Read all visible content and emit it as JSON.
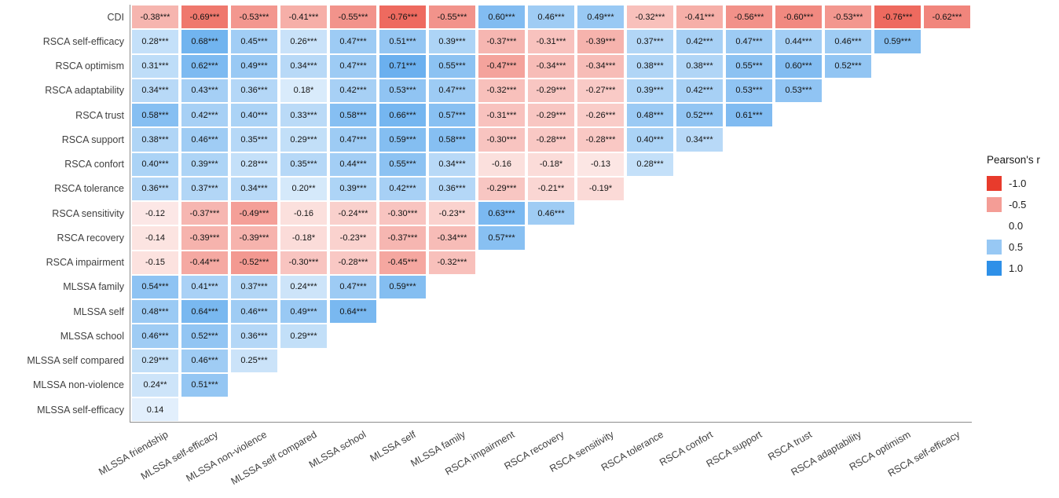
{
  "chart_data": {
    "type": "heatmap",
    "title": "",
    "xlabel": "",
    "ylabel": "",
    "grid": false,
    "value_range": [
      -1,
      1
    ],
    "colors": {
      "negative_end": "#e83b2c",
      "zero": "#ffffff",
      "positive_end": "#2e90e8"
    },
    "legend": {
      "title": "Pearson's r",
      "position": "right",
      "entries": [
        {
          "label": "-1.0",
          "value": -1.0
        },
        {
          "label": "-0.5",
          "value": -0.5
        },
        {
          "label": "0.0",
          "value": 0.0
        },
        {
          "label": "0.5",
          "value": 0.5
        },
        {
          "label": "1.0",
          "value": 1.0
        }
      ]
    },
    "columns": [
      "MLSSA friendship",
      "MLSSA self-efficacy",
      "MLSSA non-violence",
      "MLSSA self compared",
      "MLSSA school",
      "MLSSA self",
      "MLSSA family",
      "RSCA impairment",
      "RSCA recovery",
      "RSCA sensitivity",
      "RSCA tolerance",
      "RSCA confort",
      "RSCA support",
      "RSCA trust",
      "RSCA adaptability",
      "RSCA optimism",
      "RSCA self-efficacy"
    ],
    "rows": [
      {
        "label": "CDI",
        "values": [
          "-0.38***",
          "-0.69***",
          "-0.53***",
          "-0.41***",
          "-0.55***",
          "-0.76***",
          "-0.55***",
          "0.60***",
          "0.46***",
          "0.49***",
          "-0.32***",
          "-0.41***",
          "-0.56***",
          "-0.60***",
          "-0.53***",
          "-0.76***",
          "-0.62***"
        ]
      },
      {
        "label": "RSCA self-efficacy",
        "values": [
          "0.28***",
          "0.68***",
          "0.45***",
          "0.26***",
          "0.47***",
          "0.51***",
          "0.39***",
          "-0.37***",
          "-0.31***",
          "-0.39***",
          "0.37***",
          "0.42***",
          "0.47***",
          "0.44***",
          "0.46***",
          "0.59***"
        ]
      },
      {
        "label": "RSCA optimism",
        "values": [
          "0.31***",
          "0.62***",
          "0.49***",
          "0.34***",
          "0.47***",
          "0.71***",
          "0.55***",
          "-0.47***",
          "-0.34***",
          "-0.34***",
          "0.38***",
          "0.38***",
          "0.55***",
          "0.60***",
          "0.52***"
        ]
      },
      {
        "label": "RSCA adaptability",
        "values": [
          "0.34***",
          "0.43***",
          "0.36***",
          "0.18*",
          "0.42***",
          "0.53***",
          "0.47***",
          "-0.32***",
          "-0.29***",
          "-0.27***",
          "0.39***",
          "0.42***",
          "0.53***",
          "0.53***"
        ]
      },
      {
        "label": "RSCA trust",
        "values": [
          "0.58***",
          "0.42***",
          "0.40***",
          "0.33***",
          "0.58***",
          "0.66***",
          "0.57***",
          "-0.31***",
          "-0.29***",
          "-0.26***",
          "0.48***",
          "0.52***",
          "0.61***"
        ]
      },
      {
        "label": "RSCA support",
        "values": [
          "0.38***",
          "0.46***",
          "0.35***",
          "0.29***",
          "0.47***",
          "0.59***",
          "0.58***",
          "-0.30***",
          "-0.28***",
          "-0.28***",
          "0.40***",
          "0.34***"
        ]
      },
      {
        "label": "RSCA confort",
        "values": [
          "0.40***",
          "0.39***",
          "0.28***",
          "0.35***",
          "0.44***",
          "0.55***",
          "0.34***",
          "-0.16",
          "-0.18*",
          "-0.13",
          "0.28***"
        ]
      },
      {
        "label": "RSCA tolerance",
        "values": [
          "0.36***",
          "0.37***",
          "0.34***",
          "0.20**",
          "0.39***",
          "0.42***",
          "0.36***",
          "-0.29***",
          "-0.21**",
          "-0.19*"
        ]
      },
      {
        "label": "RSCA sensitivity",
        "values": [
          "-0.12",
          "-0.37***",
          "-0.49***",
          "-0.16",
          "-0.24***",
          "-0.30***",
          "-0.23**",
          "0.63***",
          "0.46***"
        ]
      },
      {
        "label": "RSCA recovery",
        "values": [
          "-0.14",
          "-0.39***",
          "-0.39***",
          "-0.18*",
          "-0.23**",
          "-0.37***",
          "-0.34***",
          "0.57***"
        ]
      },
      {
        "label": "RSCA impairment",
        "values": [
          "-0.15",
          "-0.44***",
          "-0.52***",
          "-0.30***",
          "-0.28***",
          "-0.45***",
          "-0.32***"
        ]
      },
      {
        "label": "MLSSA family",
        "values": [
          "0.54***",
          "0.41***",
          "0.37***",
          "0.24***",
          "0.47***",
          "0.59***"
        ]
      },
      {
        "label": "MLSSA self",
        "values": [
          "0.48***",
          "0.64***",
          "0.46***",
          "0.49***",
          "0.64***"
        ]
      },
      {
        "label": "MLSSA school",
        "values": [
          "0.46***",
          "0.52***",
          "0.36***",
          "0.29***"
        ]
      },
      {
        "label": "MLSSA self compared",
        "values": [
          "0.29***",
          "0.46***",
          "0.25***"
        ]
      },
      {
        "label": "MLSSA non-violence",
        "values": [
          "0.24**",
          "0.51***"
        ]
      },
      {
        "label": "MLSSA self-efficacy",
        "values": [
          "0.14"
        ]
      }
    ]
  }
}
